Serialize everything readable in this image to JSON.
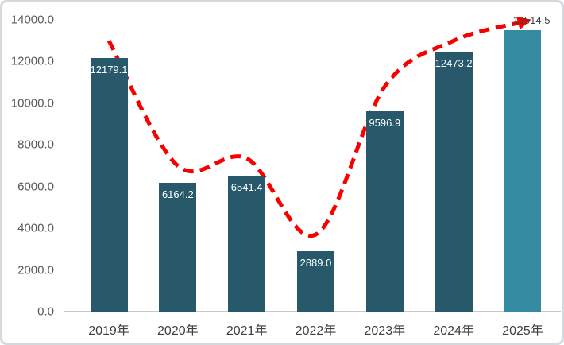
{
  "chart_data": {
    "type": "combo",
    "bar_type": "bar",
    "line_type": "line",
    "categories": [
      "2019年",
      "2020年",
      "2021年",
      "2022年",
      "2023年",
      "2024年",
      "2025年"
    ],
    "series": [
      {
        "name": "annual-value-bars",
        "type": "bar",
        "values": [
          12179.1,
          6164.2,
          6541.4,
          2889.0,
          9596.9,
          12473.2,
          13514.5
        ],
        "labels": [
          "12179.1",
          "6164.2",
          "6541.4",
          "2889.0",
          "9596.9",
          "12473.2",
          "13514.5"
        ]
      },
      {
        "name": "trend-dashed-arrow-line",
        "type": "line",
        "values": [
          13000,
          7000,
          7350,
          3700,
          10800,
          13000,
          13900
        ],
        "style": "dashed-smoothed-with-arrowhead"
      }
    ],
    "ylim": [
      0,
      14000
    ],
    "ytick_step": 2000,
    "ytick_labels": [
      "0.0",
      "2000.0",
      "4000.0",
      "6000.0",
      "8000.0",
      "10000.0",
      "12000.0",
      "14000.0"
    ],
    "grid": false,
    "legend": "none",
    "title": "",
    "highlight_index": 6,
    "label_outside_index": 6,
    "colors": {
      "bar": "#27596B",
      "bar_highlight": "#358BA2",
      "trend": "#F80000",
      "axis_line": "#C8C8C8",
      "ytick_text": "#595959",
      "xlabel_text": "#404040",
      "bar_label_inside": "#FFFFFF",
      "bar_label_outside": "#3F3F3F",
      "frame_border": "#D3D9DD",
      "background": "#FFFFFF"
    }
  }
}
